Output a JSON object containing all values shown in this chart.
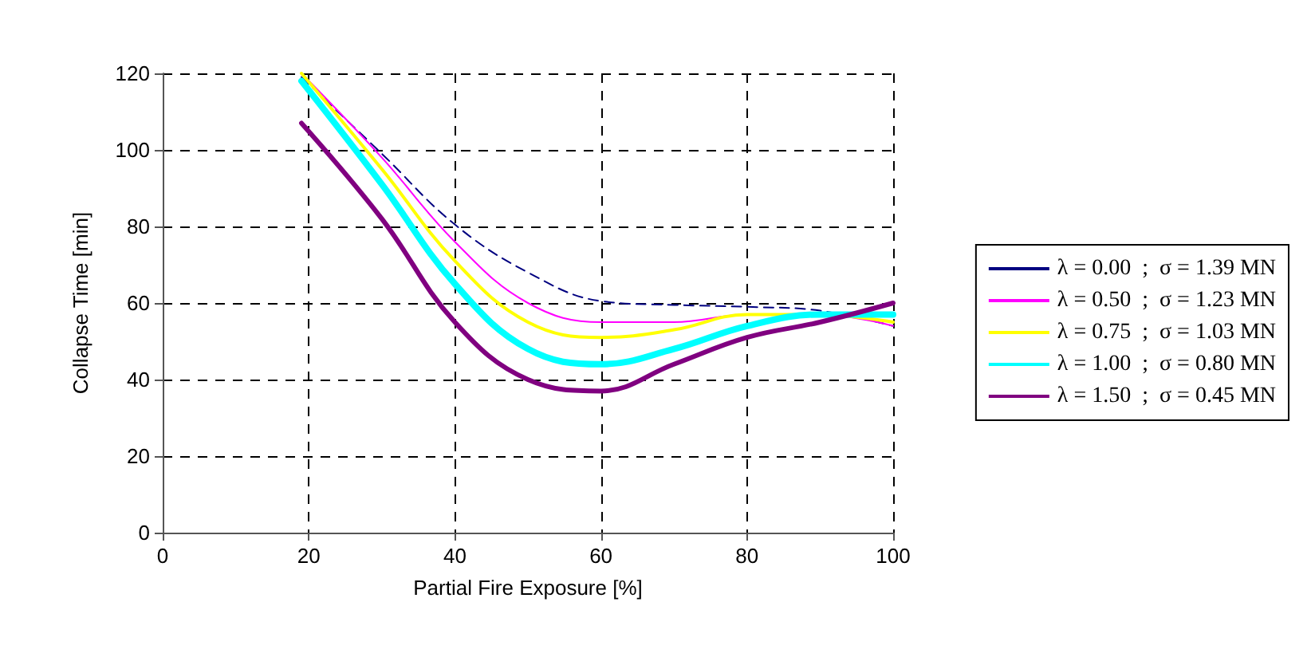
{
  "chart_data": {
    "type": "line",
    "xlabel": "Partial Fire Exposure [%]",
    "ylabel": "Collapse Time [min]",
    "xlim": [
      0,
      100
    ],
    "xticks": [
      0,
      20,
      40,
      60,
      80,
      100
    ],
    "ylim": [
      0,
      120
    ],
    "yticks": [
      0,
      20,
      40,
      60,
      80,
      100,
      120
    ],
    "grid": true,
    "legend": "right",
    "marker": "none",
    "x": [
      19,
      30,
      40,
      50,
      60,
      70,
      80,
      90,
      100
    ],
    "series": [
      {
        "name": "λ = 0.00  ;  σ = 1.39 MN",
        "color": "#000080",
        "line_style": "dashed",
        "values": [
          119,
          99,
          80.5,
          68,
          60.5,
          59.5,
          59,
          58,
          54
        ]
      },
      {
        "name": "λ = 0.50  ;  σ = 1.23 MN",
        "color": "#ff00ff",
        "line_style": "solid",
        "values": [
          120,
          98,
          76,
          60,
          55,
          55,
          57,
          57,
          54
        ]
      },
      {
        "name": "λ = 0.75  ;  σ = 1.03 MN",
        "color": "#ffff00",
        "line_style": "solid",
        "values": [
          120,
          95,
          71,
          55,
          51,
          53,
          57,
          57,
          55
        ]
      },
      {
        "name": "λ = 1.00  ;  σ = 0.80 MN",
        "color": "#00ffff",
        "line_style": "solid",
        "values": [
          118,
          91,
          65,
          48,
          44,
          48,
          54,
          57,
          57
        ]
      },
      {
        "name": "λ = 1.50  ;  σ = 0.45 MN",
        "color": "#800080",
        "line_style": "solid",
        "values": [
          107,
          82,
          55,
          40,
          37,
          44,
          51,
          55,
          60
        ]
      }
    ]
  }
}
